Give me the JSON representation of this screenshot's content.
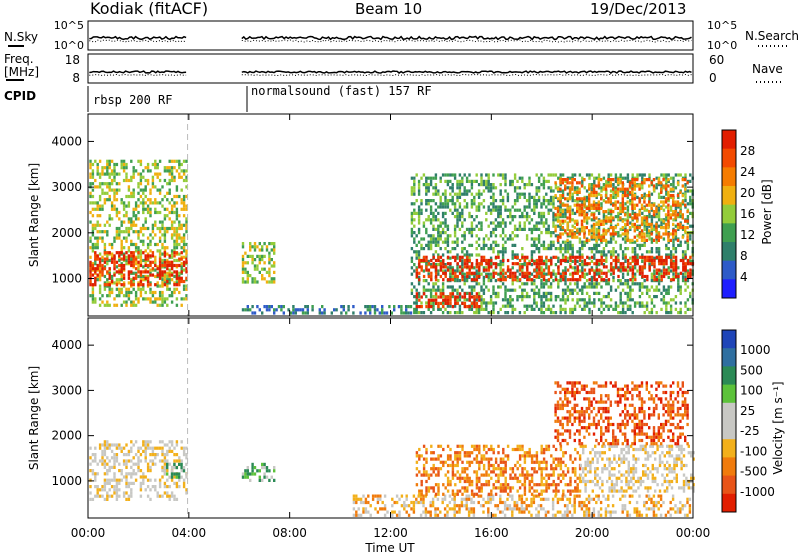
{
  "header": {
    "station": "Kodiak (fitACF)",
    "beam": "Beam 10",
    "date": "19/Dec/2013"
  },
  "noise_panel": {
    "left_label": "N.Sky",
    "right_label": "N.Search",
    "left_ticks": [
      "10^5",
      "10^0"
    ],
    "right_ticks": [
      "10^5",
      "10^0"
    ]
  },
  "freq_panel": {
    "left_label_line1": "Freq.",
    "left_label_line2": "[MHz]",
    "right_label": "Nave",
    "left_ticks": [
      "18",
      "8"
    ],
    "right_ticks": [
      "60",
      "0"
    ]
  },
  "cpid": {
    "label": "CPID",
    "segments": [
      {
        "start_hour": 0,
        "text": "rbsp 200 RF"
      },
      {
        "start_hour": 6.1,
        "text": "normalsound (fast) 157 RF"
      }
    ]
  },
  "colors": {
    "power_scale": [
      "#1f1fff",
      "#2e5bc8",
      "#2f7f6a",
      "#3f9f50",
      "#93cc3a",
      "#f0b010",
      "#f57c00",
      "#f34a00",
      "#e21e00"
    ],
    "velocity_scale": [
      "#1f45b8",
      "#2f6fa0",
      "#2b8a55",
      "#5cc23a",
      "#c8c8c4",
      "#c8c8c4",
      "#f2b01b",
      "#f07b0c",
      "#e85418",
      "#e21e00"
    ]
  },
  "chart_data": [
    {
      "type": "heatmap",
      "title": "Power",
      "ylabel": "Slant Range [km]",
      "yticks": [
        "1000",
        "2000",
        "3000",
        "4000"
      ],
      "ylim": [
        180,
        4600
      ],
      "colorbar_label": "Power [dB]",
      "colorbar_ticks": [
        "4",
        "8",
        "12",
        "16",
        "20",
        "24",
        "28"
      ],
      "regions": [
        {
          "x": [
            0.05,
            3.9
          ],
          "y": [
            400,
            3600
          ],
          "level": 4
        },
        {
          "x": [
            0.05,
            3.9
          ],
          "y": [
            850,
            1600
          ],
          "level": 8
        },
        {
          "x": [
            6.1,
            7.4
          ],
          "y": [
            900,
            1800
          ],
          "level": 4
        },
        {
          "x": [
            6.1,
            12.8
          ],
          "y": [
            220,
            420
          ],
          "level": 2
        },
        {
          "x": [
            12.8,
            24.0
          ],
          "y": [
            250,
            3300
          ],
          "level": 3
        },
        {
          "x": [
            13.0,
            24.0
          ],
          "y": [
            1000,
            1500
          ],
          "level": 8
        },
        {
          "x": [
            13.0,
            15.5
          ],
          "y": [
            350,
            700
          ],
          "level": 8
        },
        {
          "x": [
            18.5,
            23.8
          ],
          "y": [
            1800,
            3200
          ],
          "level": 6
        }
      ]
    },
    {
      "type": "heatmap",
      "title": "Velocity",
      "xlabel": "Time UT",
      "ylabel": "Slant Range [km]",
      "yticks": [
        "1000",
        "2000",
        "3000",
        "4000"
      ],
      "xticks": [
        "00:00",
        "04:00",
        "08:00",
        "12:00",
        "16:00",
        "20:00",
        "00:00"
      ],
      "xlim": [
        0,
        24
      ],
      "ylim": [
        180,
        4600
      ],
      "colorbar_label": "Velocity [m s⁻¹]",
      "colorbar_ticks": [
        "1000",
        "500",
        "100",
        "25",
        "-25",
        "-100",
        "-500",
        "-1000"
      ],
      "regions": [
        {
          "x": [
            0.05,
            3.9
          ],
          "y": [
            600,
            1900
          ],
          "level": 5
        },
        {
          "x": [
            3.0,
            3.9
          ],
          "y": [
            1100,
            1400
          ],
          "level": 3
        },
        {
          "x": [
            6.1,
            7.4
          ],
          "y": [
            1000,
            1400
          ],
          "level": 3
        },
        {
          "x": [
            10.5,
            24.0
          ],
          "y": [
            250,
            700
          ],
          "level": 6
        },
        {
          "x": [
            13.0,
            19.5
          ],
          "y": [
            700,
            1800
          ],
          "level": 7
        },
        {
          "x": [
            19.5,
            24.0
          ],
          "y": [
            800,
            1800
          ],
          "level": 5
        },
        {
          "x": [
            18.5,
            23.8
          ],
          "y": [
            1800,
            3200
          ],
          "level": 8
        }
      ]
    }
  ]
}
